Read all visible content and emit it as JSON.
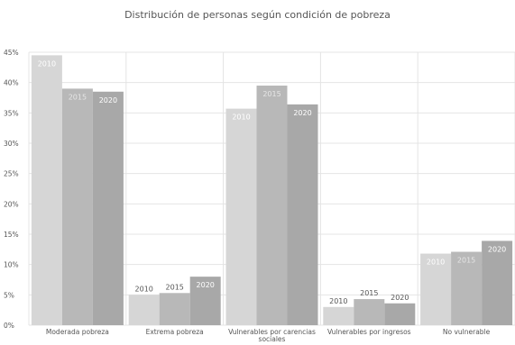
{
  "chart_data": {
    "type": "bar",
    "title": "Distribución de personas según condición de pobreza",
    "categories": [
      [
        "Moderada pobreza"
      ],
      [
        "Extrema pobreza"
      ],
      [
        "Vulnerables por carencias",
        "sociales"
      ],
      [
        "Vulnerables por ingresos"
      ],
      [
        "No vulnerable"
      ]
    ],
    "series": [
      {
        "name": "2010",
        "color": "#d6d6d6",
        "values": [
          44.5,
          5.0,
          35.7,
          3.0,
          11.8
        ]
      },
      {
        "name": "2015",
        "color": "#b8b8b8",
        "values": [
          39.0,
          5.3,
          39.5,
          4.3,
          12.1
        ]
      },
      {
        "name": "2020",
        "color": "#a8a8a8",
        "values": [
          38.5,
          8.0,
          36.4,
          3.6,
          13.9
        ]
      }
    ],
    "data_label_colors": {
      "inside": [
        "#ffffff",
        "#e6e6e6",
        "#ffffff"
      ],
      "outside": "#555555"
    },
    "ylim": [
      0,
      45
    ],
    "yticks": [
      {
        "value": 0,
        "label": "0%"
      },
      {
        "value": 5,
        "label": "5%"
      },
      {
        "value": 10,
        "label": "10%"
      },
      {
        "value": 15,
        "label": "15%"
      },
      {
        "value": 20,
        "label": "20%"
      },
      {
        "value": 25,
        "label": "25%"
      },
      {
        "value": 30,
        "label": "30%"
      },
      {
        "value": 35,
        "label": "35%"
      },
      {
        "value": 40,
        "label": "40%"
      },
      {
        "value": 45,
        "label": "45%"
      }
    ],
    "xlabel": "",
    "ylabel": "",
    "grid": true,
    "legend": "none",
    "gridline_color": "#e4e4e4"
  }
}
